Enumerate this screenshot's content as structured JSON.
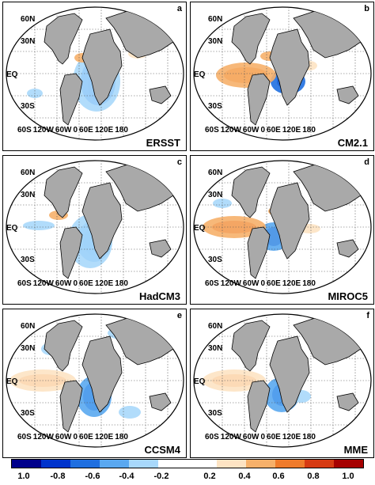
{
  "panels": [
    {
      "letter": "a",
      "model": "ERSST"
    },
    {
      "letter": "b",
      "model": "CM2.1"
    },
    {
      "letter": "c",
      "model": "HadCM3"
    },
    {
      "letter": "d",
      "model": "MIROC5"
    },
    {
      "letter": "e",
      "model": "CCSM4"
    },
    {
      "letter": "f",
      "model": "MME"
    }
  ],
  "lat_labels": [
    "60N",
    "30N",
    "EQ",
    "30S"
  ],
  "lon_labels": [
    "60S",
    "120W",
    "60W",
    "0",
    "60E",
    "120E",
    "180"
  ],
  "colorbar": {
    "colors": [
      "#00008b",
      "#0033cc",
      "#1f6fe0",
      "#5aa8f0",
      "#a8d8fb",
      "#ffffff",
      "#ffffff",
      "#fde3c3",
      "#f6b06a",
      "#ef7b2b",
      "#d63a12",
      "#a60000"
    ],
    "ticks": [
      "1.0",
      "-0.8",
      "-0.6",
      "-0.4",
      "-0.2",
      "0.2",
      "0.4",
      "0.6",
      "0.8",
      "1.0"
    ]
  }
}
